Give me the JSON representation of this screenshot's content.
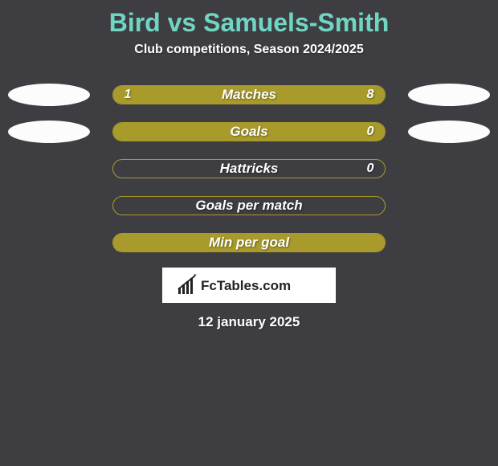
{
  "title": "Bird vs Samuels-Smith",
  "subtitle": "Club competitions, Season 2024/2025",
  "date": "12 january 2025",
  "logo_text": "FcTables.com",
  "colors": {
    "background": "#3e3e42",
    "title_color": "#6fd6c4",
    "bar_color": "#a89b2b",
    "text_color": "#ffffff",
    "ellipse_color": "#fcfcfc",
    "logo_bg": "#ffffff",
    "logo_text_color": "#222222"
  },
  "stats": [
    {
      "label": "Matches",
      "left_value": "1",
      "right_value": "8",
      "left_pct": 11.1,
      "right_pct": 88.9,
      "show_ellipses": true
    },
    {
      "label": "Goals",
      "left_value": "",
      "right_value": "0",
      "left_pct": 100,
      "right_pct": 0,
      "show_ellipses": true
    },
    {
      "label": "Hattricks",
      "left_value": "",
      "right_value": "0",
      "left_pct": 0,
      "right_pct": 0,
      "show_ellipses": false
    },
    {
      "label": "Goals per match",
      "left_value": "",
      "right_value": "",
      "left_pct": 0,
      "right_pct": 0,
      "show_ellipses": false
    },
    {
      "label": "Min per goal",
      "left_value": "",
      "right_value": "",
      "left_pct": 100,
      "right_pct": 0,
      "show_ellipses": false
    }
  ]
}
